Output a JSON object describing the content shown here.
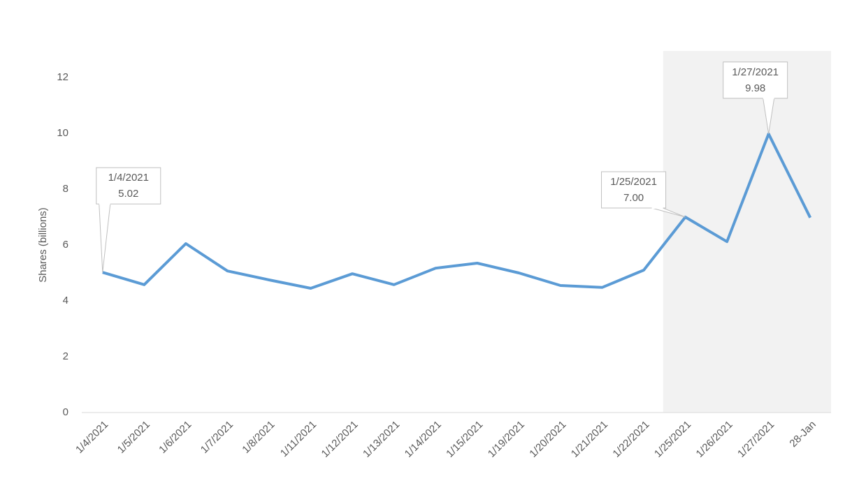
{
  "chart_data": {
    "type": "line",
    "y_label": "Shares (billions)",
    "categories": [
      "1/4/2021",
      "1/5/2021",
      "1/6/2021",
      "1/7/2021",
      "1/8/2021",
      "1/11/2021",
      "1/12/2021",
      "1/13/2021",
      "1/14/2021",
      "1/15/2021",
      "1/19/2021",
      "1/20/2021",
      "1/21/2021",
      "1/22/2021",
      "1/25/2021",
      "1/26/2021",
      "1/27/2021",
      "28-Jan"
    ],
    "values": [
      5.02,
      4.58,
      6.05,
      5.07,
      4.75,
      4.45,
      4.97,
      4.58,
      5.17,
      5.35,
      5.0,
      4.55,
      4.48,
      5.1,
      7.0,
      6.12,
      9.98,
      6.98
    ],
    "value_labels": [
      "5.02",
      null,
      null,
      null,
      null,
      null,
      null,
      null,
      null,
      null,
      null,
      null,
      null,
      null,
      "7.00",
      null,
      "9.98",
      null
    ],
    "color": "#5b9bd5",
    "highlight": {
      "categories": [
        14,
        17
      ],
      "color": "#f2f2f2"
    },
    "ylim": [
      0,
      12
    ],
    "yticks": [
      0,
      2,
      4,
      6,
      8,
      10,
      12
    ],
    "grid": false
  }
}
